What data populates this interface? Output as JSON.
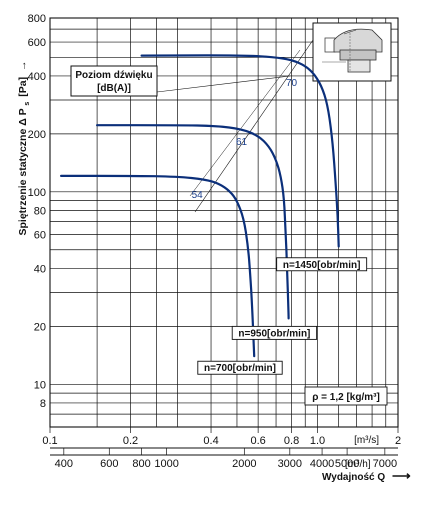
{
  "chart_data": {
    "type": "line",
    "ylabel": "Spiętrzenie statyczne Δ P",
    "ylabel_sub": "s",
    "ylabel_unit": "[Pa]",
    "ylabel_arrow": "→",
    "x_unit_label": "[m³/s]",
    "x2_unit_label": "[m³/h]",
    "x2_title": "Wydajność Q",
    "x2_arrow": "⟶",
    "xlim": [
      0.1,
      2.0
    ],
    "ylim": [
      6,
      800
    ],
    "x_log": true,
    "y_log": true,
    "grid": true,
    "x_ticks": [
      {
        "v": 0.1,
        "label": "0.1"
      },
      {
        "v": 0.2,
        "label": "0.2"
      },
      {
        "v": 0.4,
        "label": "0.4"
      },
      {
        "v": 0.6,
        "label": "0.6"
      },
      {
        "v": 0.8,
        "label": "0.8"
      },
      {
        "v": 1.0,
        "label": "1.0"
      },
      {
        "v": 2.0,
        "label": "2"
      }
    ],
    "x_unit_at": 1.5,
    "x_extra_grid": [
      0.15,
      0.25,
      0.3,
      0.5,
      0.7,
      0.9,
      1.2,
      1.4,
      1.6,
      1.8
    ],
    "x2_ticks": [
      {
        "v": 400,
        "label": "400"
      },
      {
        "v": 600,
        "label": "600"
      },
      {
        "v": 800,
        "label": "800"
      },
      {
        "v": 1000,
        "label": "1000"
      },
      {
        "v": 2000,
        "label": "2000"
      },
      {
        "v": 3000,
        "label": "3000"
      },
      {
        "v": 4000,
        "label": "4000"
      },
      {
        "v": 5000,
        "label": "5000"
      },
      {
        "v": 7000,
        "label": "7000"
      }
    ],
    "y_ticks": [
      {
        "v": 8,
        "label": "8"
      },
      {
        "v": 10,
        "label": "10"
      },
      {
        "v": 20,
        "label": "20"
      },
      {
        "v": 40,
        "label": "40"
      },
      {
        "v": 60,
        "label": "60"
      },
      {
        "v": 80,
        "label": "80"
      },
      {
        "v": 100,
        "label": "100"
      },
      {
        "v": 200,
        "label": "200"
      },
      {
        "v": 400,
        "label": "400"
      },
      {
        "v": 600,
        "label": "600"
      },
      {
        "v": 800,
        "label": "800"
      }
    ],
    "y_extra_grid": [
      7,
      9,
      30,
      50,
      70,
      90,
      300,
      500,
      700
    ],
    "series": [
      {
        "name": "n=700[obr/min]",
        "label_anchor": [
          0.58,
          14.5
        ],
        "points": [
          [
            0.11,
            121
          ],
          [
            0.2,
            121
          ],
          [
            0.3,
            120
          ],
          [
            0.38,
            116
          ],
          [
            0.43,
            110
          ],
          [
            0.47,
            101
          ],
          [
            0.5,
            90
          ],
          [
            0.53,
            73
          ],
          [
            0.55,
            52
          ],
          [
            0.56,
            38
          ],
          [
            0.57,
            25
          ],
          [
            0.58,
            14
          ]
        ]
      },
      {
        "name": "n=950[obr/min]",
        "label_anchor": [
          0.78,
          22
        ],
        "points": [
          [
            0.15,
            222
          ],
          [
            0.3,
            222
          ],
          [
            0.42,
            220
          ],
          [
            0.52,
            212
          ],
          [
            0.6,
            196
          ],
          [
            0.66,
            172
          ],
          [
            0.7,
            147
          ],
          [
            0.73,
            120
          ],
          [
            0.75,
            92
          ],
          [
            0.76,
            62
          ],
          [
            0.77,
            40
          ],
          [
            0.78,
            22
          ]
        ]
      },
      {
        "name": "n=1450[obr/min]",
        "label_anchor": [
          1.2,
          50
        ],
        "points": [
          [
            0.22,
            510
          ],
          [
            0.4,
            512
          ],
          [
            0.55,
            510
          ],
          [
            0.68,
            502
          ],
          [
            0.8,
            485
          ],
          [
            0.9,
            452
          ],
          [
            0.98,
            405
          ],
          [
            1.05,
            340
          ],
          [
            1.1,
            265
          ],
          [
            1.14,
            180
          ],
          [
            1.17,
            110
          ],
          [
            1.19,
            75
          ],
          [
            1.2,
            52
          ]
        ]
      }
    ],
    "annotations": {
      "sound_box_lines": [
        "Poziom dźwięku",
        "[dB(A)]"
      ],
      "db_levels": [
        {
          "value": "54",
          "x": 0.355,
          "y": 93
        },
        {
          "value": "61",
          "x": 0.52,
          "y": 175
        },
        {
          "value": "70",
          "x": 0.8,
          "y": 355
        }
      ],
      "density": "ρ = 1,2 [kg/m³]"
    }
  },
  "colors": {
    "curve": "#0b2f7a",
    "grid": "#111111",
    "text": "#111111",
    "db": "#1b3e8a"
  },
  "icons": {
    "inset": "fan-drawing-icon"
  }
}
